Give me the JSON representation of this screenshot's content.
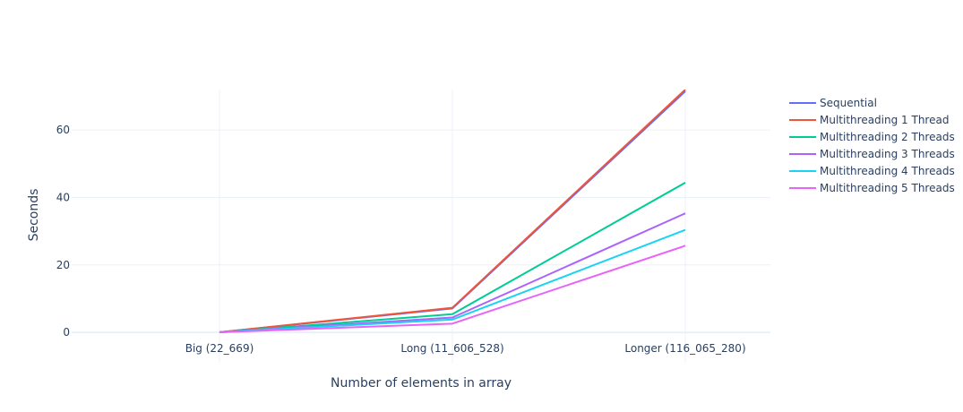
{
  "chart_data": {
    "type": "line",
    "title": "",
    "xlabel": "Number of elements in array",
    "ylabel": "Seconds",
    "categories": [
      "Big (22_669)",
      "Long (11_606_528)",
      "Longer (116_065_280)"
    ],
    "ylim": [
      -9,
      72
    ],
    "yticks": [
      0,
      20,
      40,
      60
    ],
    "grid": true,
    "legend_position": "right",
    "series": [
      {
        "name": "Sequential",
        "color": "#636efa",
        "values": [
          0.05,
          7.1,
          71.5
        ]
      },
      {
        "name": "Multithreading 1 Thread",
        "color": "#ef553b",
        "values": [
          0.05,
          7.3,
          72.0
        ]
      },
      {
        "name": "Multithreading 2 Threads",
        "color": "#00cc96",
        "values": [
          0.04,
          5.4,
          44.4
        ]
      },
      {
        "name": "Multithreading 3 Threads",
        "color": "#ab63fa",
        "values": [
          0.04,
          4.4,
          35.3
        ]
      },
      {
        "name": "Multithreading 4 Threads",
        "color": "#19d3f3",
        "values": [
          0.03,
          3.8,
          30.4
        ]
      },
      {
        "name": "Multithreading 5 Threads",
        "color": "#e763fa",
        "values": [
          0.03,
          2.6,
          25.7
        ]
      }
    ]
  }
}
